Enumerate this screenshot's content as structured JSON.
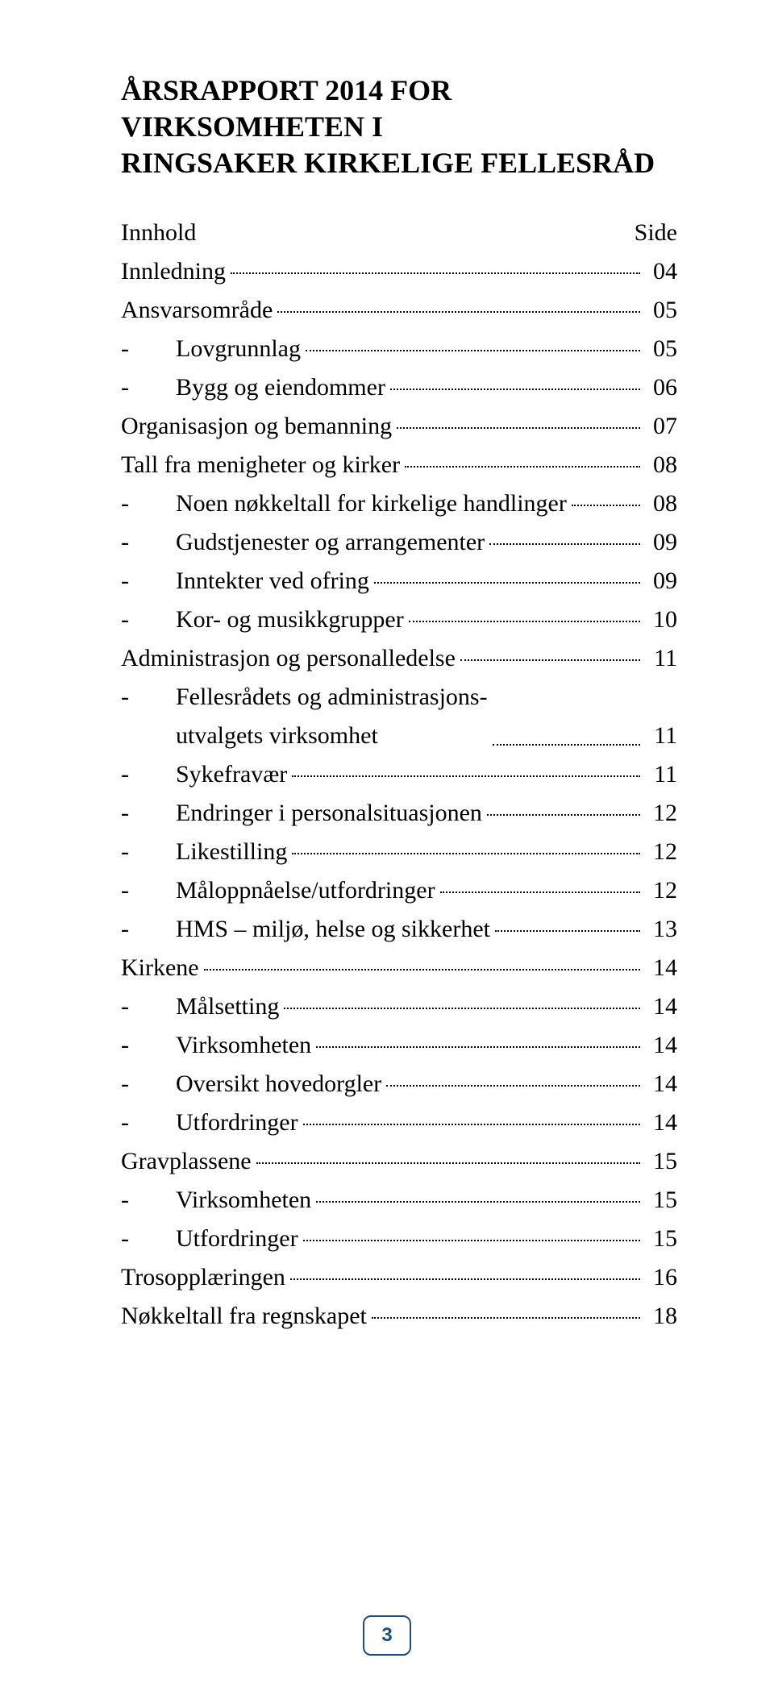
{
  "title_line1": "ÅRSRAPPORT 2014 FOR VIRKSOMHETEN I",
  "title_line2": "RINGSAKER KIRKELIGE FELLESRÅD",
  "innhold_label": "Innhold",
  "side_label": "Side",
  "toc": [
    {
      "level": 0,
      "label": "Innledning",
      "page": "04"
    },
    {
      "level": 0,
      "label": "Ansvarsområde",
      "page": "05"
    },
    {
      "level": 1,
      "label": "Lovgrunnlag",
      "page": "05"
    },
    {
      "level": 1,
      "label": "Bygg og eiendommer",
      "page": "06"
    },
    {
      "level": 0,
      "label": "Organisasjon og bemanning",
      "page": "07"
    },
    {
      "level": 0,
      "label": "Tall fra menigheter og kirker",
      "page": "08"
    },
    {
      "level": 1,
      "label": "Noen nøkkeltall for kirkelige handlinger",
      "page": "08"
    },
    {
      "level": 1,
      "label": "Gudstjenester og arrangementer",
      "page": "09"
    },
    {
      "level": 1,
      "label": "Inntekter ved ofring",
      "page": "09"
    },
    {
      "level": 1,
      "label": "Kor- og musikkgrupper",
      "page": "10"
    },
    {
      "level": 0,
      "label": "Administrasjon og personalledelse",
      "page": "11"
    },
    {
      "level": 1,
      "label": "Fellesrådets og administrasjons-\nutvalgets virksomhet",
      "page": "11"
    },
    {
      "level": 1,
      "label": "Sykefravær",
      "page": "11"
    },
    {
      "level": 1,
      "label": "Endringer i personalsituasjonen",
      "page": "12"
    },
    {
      "level": 1,
      "label": "Likestilling",
      "page": "12"
    },
    {
      "level": 1,
      "label": "Måloppnåelse/utfordringer",
      "page": "12"
    },
    {
      "level": 1,
      "label": "HMS – miljø, helse og sikkerhet",
      "page": "13"
    },
    {
      "level": 0,
      "label": "Kirkene",
      "page": "14"
    },
    {
      "level": 1,
      "label": "Målsetting",
      "page": "14"
    },
    {
      "level": 1,
      "label": "Virksomheten",
      "page": "14"
    },
    {
      "level": 1,
      "label": "Oversikt hovedorgler",
      "page": "14"
    },
    {
      "level": 1,
      "label": "Utfordringer",
      "page": "14"
    },
    {
      "level": 0,
      "label": "Gravplassene",
      "page": "15"
    },
    {
      "level": 1,
      "label": "Virksomheten",
      "page": "15"
    },
    {
      "level": 1,
      "label": "Utfordringer",
      "page": "15"
    },
    {
      "level": 0,
      "label": "Trosopplæringen",
      "page": "16"
    },
    {
      "level": 0,
      "label": "Nøkkeltall fra regnskapet",
      "page": "18"
    }
  ],
  "page_number": "3",
  "page_number_box": {
    "border_color": "#1f4e79",
    "fill_color": "#ffffff",
    "text_color": "#1f4e79",
    "border_width": "2px"
  }
}
